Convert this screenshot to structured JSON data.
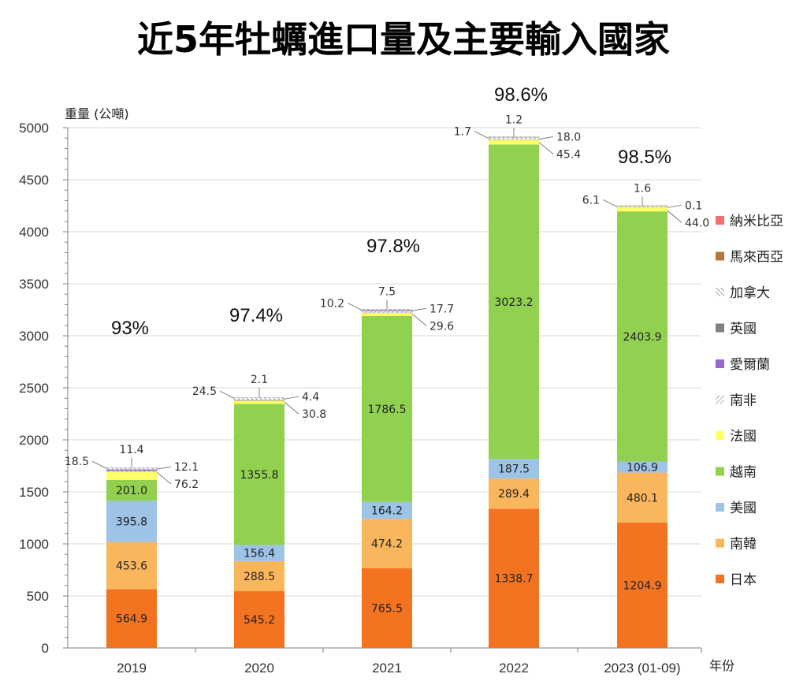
{
  "chart_data": {
    "type": "bar",
    "stacked": true,
    "title": "近5年牡蠣進口量及主要輸入國家",
    "xlabel": "年份",
    "ylabel": "重量 (公噸)",
    "ylim": [
      0,
      5000
    ],
    "yticks": [
      0,
      500,
      1000,
      1500,
      2000,
      2500,
      3000,
      3500,
      4000,
      4500,
      5000
    ],
    "categories": [
      "2019",
      "2020",
      "2021",
      "2022",
      "2023 (01-09)"
    ],
    "series": [
      {
        "name": "日本",
        "color": "#f47321",
        "values": [
          564.9,
          545.2,
          765.5,
          1338.7,
          1204.9
        ]
      },
      {
        "name": "南韓",
        "color": "#fab65c",
        "values": [
          453.6,
          288.5,
          474.2,
          289.4,
          480.1
        ]
      },
      {
        "name": "美國",
        "color": "#9dc3e6",
        "values": [
          395.8,
          156.4,
          164.2,
          187.5,
          106.9
        ]
      },
      {
        "name": "越南",
        "color": "#92d050",
        "values": [
          201.0,
          1355.8,
          1786.5,
          3023.2,
          2403.9
        ]
      },
      {
        "name": "法國",
        "color": "#ffff66",
        "values": [
          76.2,
          30.8,
          29.6,
          45.4,
          44.0
        ]
      },
      {
        "name": "南非",
        "color": "#c0c0c0",
        "pattern": "hatch",
        "values": [
          12.1,
          4.4,
          17.7,
          18.0,
          0.1
        ]
      },
      {
        "name": "愛爾蘭",
        "color": "#9966cc",
        "values": [
          11.4,
          2.1,
          7.5,
          1.2,
          1.6
        ]
      },
      {
        "name": "英國",
        "color": "#808080",
        "values": [
          null,
          null,
          null,
          null,
          null
        ]
      },
      {
        "name": "加拿大",
        "color": "#a0a0b8",
        "pattern": "hatch",
        "values": [
          18.5,
          24.5,
          10.2,
          1.7,
          6.1
        ]
      },
      {
        "name": "馬來西亞",
        "color": "#b07a3a",
        "values": [
          null,
          null,
          null,
          null,
          null
        ]
      },
      {
        "name": "納米比亞",
        "color": "#f07070",
        "values": [
          null,
          null,
          null,
          null,
          null
        ]
      }
    ],
    "side_labels": [
      [
        {
          "series": "加拿大",
          "text": "18.5",
          "side": "left"
        },
        {
          "series": "愛爾蘭",
          "text": "11.4",
          "side": "top"
        },
        {
          "series": "南非",
          "text": "12.1",
          "side": "right"
        },
        {
          "series": "法國",
          "text": "76.2",
          "side": "right"
        }
      ],
      [
        {
          "series": "加拿大",
          "text": "24.5",
          "side": "left"
        },
        {
          "series": "愛爾蘭",
          "text": "2.1",
          "side": "top"
        },
        {
          "series": "南非",
          "text": "4.4",
          "side": "right"
        },
        {
          "series": "法國",
          "text": "30.8",
          "side": "right"
        }
      ],
      [
        {
          "series": "加拿大",
          "text": "10.2",
          "side": "left"
        },
        {
          "series": "愛爾蘭",
          "text": "7.5",
          "side": "top"
        },
        {
          "series": "南非",
          "text": "17.7",
          "side": "right"
        },
        {
          "series": "法國",
          "text": "29.6",
          "side": "right"
        }
      ],
      [
        {
          "series": "加拿大",
          "text": "1.7",
          "side": "left"
        },
        {
          "series": "愛爾蘭",
          "text": "1.2",
          "side": "top"
        },
        {
          "series": "南非",
          "text": "18.0",
          "side": "right"
        },
        {
          "series": "法國",
          "text": "45.4",
          "side": "right"
        }
      ],
      [
        {
          "series": "加拿大",
          "text": "6.1",
          "side": "left"
        },
        {
          "series": "愛爾蘭",
          "text": "1.6",
          "side": "top"
        },
        {
          "series": "南非",
          "text": "0.1",
          "side": "right"
        },
        {
          "series": "法國",
          "text": "44.0",
          "side": "right"
        }
      ]
    ],
    "percent_annotations": [
      "93%",
      "97.4%",
      "97.8%",
      "98.6%",
      "98.5%"
    ],
    "legend_position": "right",
    "grid": true
  }
}
